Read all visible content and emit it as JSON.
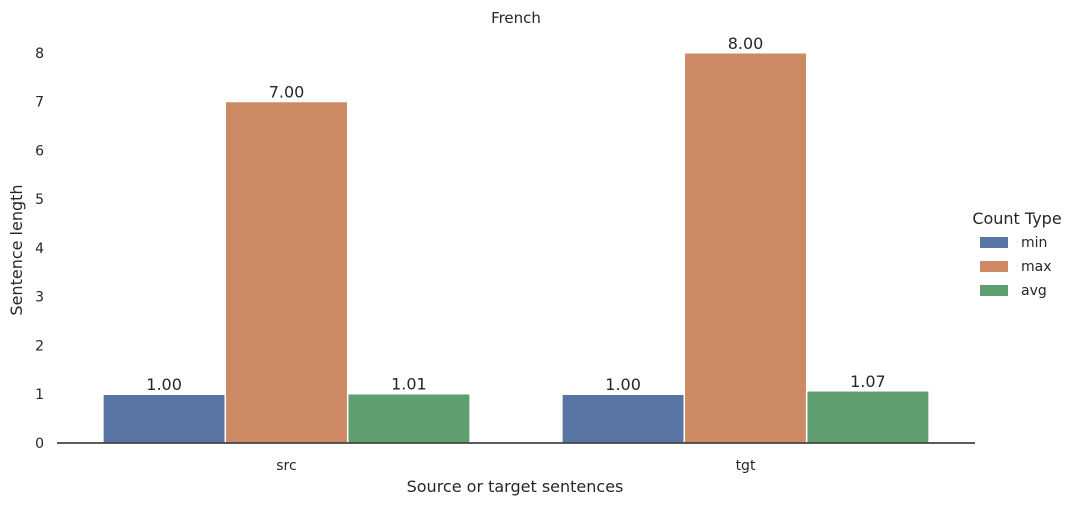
{
  "chart_data": {
    "type": "bar",
    "title": "French",
    "xlabel": "Source or target sentences",
    "ylabel": "Sentence length",
    "categories": [
      "src",
      "tgt"
    ],
    "series": [
      {
        "name": "min",
        "values": [
          1.0,
          1.0
        ],
        "labels": [
          "1.00",
          "1.00"
        ],
        "color": "#5875a4"
      },
      {
        "name": "max",
        "values": [
          7.0,
          8.0
        ],
        "labels": [
          "7.00",
          "8.00"
        ],
        "color": "#cc8963"
      },
      {
        "name": "avg",
        "values": [
          1.01,
          1.07
        ],
        "labels": [
          "1.01",
          "1.07"
        ],
        "color": "#5f9e6e"
      }
    ],
    "yticks": [
      0,
      1,
      2,
      3,
      4,
      5,
      6,
      7,
      8
    ],
    "ylim": [
      0,
      8.2
    ],
    "grid": false,
    "legend": {
      "title": "Count Type",
      "placement": "right"
    }
  }
}
